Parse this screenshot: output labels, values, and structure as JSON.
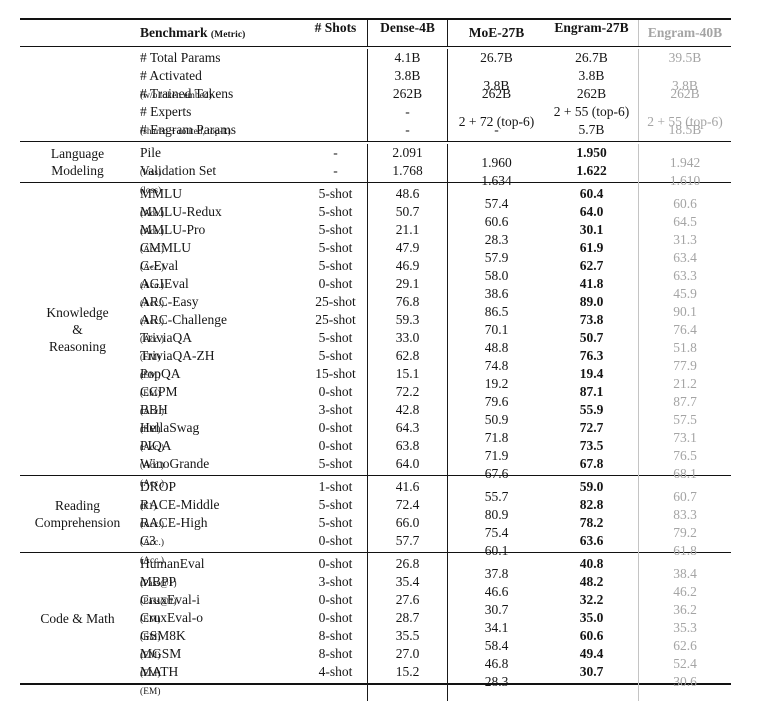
{
  "table": {
    "header": {
      "benchmark_label": "Benchmark",
      "benchmark_metric": "(Metric)",
      "shots_label": "# Shots",
      "models": [
        "Dense-4B",
        "MoE-27B",
        "Engram-27B",
        "Engram-40B"
      ]
    },
    "colors": {
      "text": "#151515",
      "muted_text": "#a4a4a4",
      "rule": "#121212",
      "muted_rule": "#c4c4c4"
    },
    "spec_section": {
      "rows": [
        {
          "name": "# Total Params",
          "sublabel": "",
          "shots": "",
          "values": [
            "4.1B",
            "26.7B",
            "26.7B",
            "39.5B"
          ]
        },
        {
          "name": "# Activated",
          "sublabel": "(w/o token embed)",
          "shots": "",
          "values": [
            "3.8B",
            "3.8B",
            "3.8B",
            "3.8B"
          ]
        },
        {
          "name": "# Trained Tokens",
          "sublabel": "",
          "shots": "",
          "values": [
            "262B",
            "262B",
            "262B",
            "262B"
          ]
        },
        {
          "name": "# Experts",
          "sublabel": "(shared + routed, top-k)",
          "shots": "",
          "values": [
            "-",
            "2 + 72 (top-6)",
            "2 + 55 (top-6)",
            "2 + 55 (top-6)"
          ]
        },
        {
          "name": "# Engram Params",
          "sublabel": "",
          "shots": "",
          "values": [
            "-",
            "-",
            "5.7B",
            "18.5B"
          ]
        }
      ]
    },
    "sections": [
      {
        "group": [
          "Language",
          "Modeling"
        ],
        "rows": [
          {
            "name": "Pile",
            "metric": "(loss)",
            "shots": "-",
            "values": [
              "2.091",
              "1.960",
              "1.950",
              "1.942"
            ]
          },
          {
            "name": "Validation Set",
            "metric": "(loss)",
            "shots": "-",
            "values": [
              "1.768",
              "1.634",
              "1.622",
              "1.610"
            ]
          }
        ]
      },
      {
        "group": [
          "Knowledge",
          "&",
          "Reasoning"
        ],
        "rows": [
          {
            "name": "MMLU",
            "metric": "(Acc.)",
            "shots": "5-shot",
            "values": [
              "48.6",
              "57.4",
              "60.4",
              "60.6"
            ]
          },
          {
            "name": "MMLU-Redux",
            "metric": "(Acc.)",
            "shots": "5-shot",
            "values": [
              "50.7",
              "60.6",
              "64.0",
              "64.5"
            ]
          },
          {
            "name": "MMLU-Pro",
            "metric": "(Acc.)",
            "shots": "5-shot",
            "values": [
              "21.1",
              "28.3",
              "30.1",
              "31.3"
            ]
          },
          {
            "name": "CMMLU",
            "metric": "(Acc.)",
            "shots": "5-shot",
            "values": [
              "47.9",
              "57.9",
              "61.9",
              "63.4"
            ]
          },
          {
            "name": "C-Eval",
            "metric": "(Acc.)",
            "shots": "5-shot",
            "values": [
              "46.9",
              "58.0",
              "62.7",
              "63.3"
            ]
          },
          {
            "name": "AGIEval",
            "metric": "(Acc.)",
            "shots": "0-shot",
            "values": [
              "29.1",
              "38.6",
              "41.8",
              "45.9"
            ]
          },
          {
            "name": "ARC-Easy",
            "metric": "(Acc.)",
            "shots": "25-shot",
            "values": [
              "76.8",
              "86.5",
              "89.0",
              "90.1"
            ]
          },
          {
            "name": "ARC-Challenge",
            "metric": "(Acc.)",
            "shots": "25-shot",
            "values": [
              "59.3",
              "70.1",
              "73.8",
              "76.4"
            ]
          },
          {
            "name": "TriviaQA",
            "metric": "(EM)",
            "shots": "5-shot",
            "values": [
              "33.0",
              "48.8",
              "50.7",
              "51.8"
            ]
          },
          {
            "name": "TriviaQA-ZH",
            "metric": "(EM)",
            "shots": "5-shot",
            "values": [
              "62.8",
              "74.8",
              "76.3",
              "77.9"
            ]
          },
          {
            "name": "PopQA",
            "metric": "(EM)",
            "shots": "15-shot",
            "values": [
              "15.1",
              "19.2",
              "19.4",
              "21.2"
            ]
          },
          {
            "name": "CCPM",
            "metric": "(Acc.)",
            "shots": "0-shot",
            "values": [
              "72.2",
              "79.6",
              "87.1",
              "87.7"
            ]
          },
          {
            "name": "BBH",
            "metric": "(EM)",
            "shots": "3-shot",
            "values": [
              "42.8",
              "50.9",
              "55.9",
              "57.5"
            ]
          },
          {
            "name": "HellaSwag",
            "metric": "(Acc.)",
            "shots": "0-shot",
            "values": [
              "64.3",
              "71.8",
              "72.7",
              "73.1"
            ]
          },
          {
            "name": "PIQA",
            "metric": "(Acc.)",
            "shots": "0-shot",
            "values": [
              "63.8",
              "71.9",
              "73.5",
              "76.5"
            ]
          },
          {
            "name": "WinoGrande",
            "metric": "(Acc.)",
            "shots": "5-shot",
            "values": [
              "64.0",
              "67.6",
              "67.8",
              "68.1"
            ]
          }
        ]
      },
      {
        "group": [
          "Reading",
          "Comprehension"
        ],
        "rows": [
          {
            "name": "DROP",
            "metric": "(F1)",
            "shots": "1-shot",
            "values": [
              "41.6",
              "55.7",
              "59.0",
              "60.7"
            ]
          },
          {
            "name": "RACE-Middle",
            "metric": "(Acc.)",
            "shots": "5-shot",
            "values": [
              "72.4",
              "80.9",
              "82.8",
              "83.3"
            ]
          },
          {
            "name": "RACE-High",
            "metric": "(Acc.)",
            "shots": "5-shot",
            "values": [
              "66.0",
              "75.4",
              "78.2",
              "79.2"
            ]
          },
          {
            "name": "C3",
            "metric": "(Acc.)",
            "shots": "0-shot",
            "values": [
              "57.7",
              "60.1",
              "63.6",
              "61.8"
            ]
          }
        ]
      },
      {
        "group": [
          "Code & Math"
        ],
        "rows": [
          {
            "name": "HumanEval",
            "metric": "(Pass@1)",
            "shots": "0-shot",
            "values": [
              "26.8",
              "37.8",
              "40.8",
              "38.4"
            ]
          },
          {
            "name": "MBPP",
            "metric": "(Pass@1)",
            "shots": "3-shot",
            "values": [
              "35.4",
              "46.6",
              "48.2",
              "46.2"
            ]
          },
          {
            "name": "CruxEval-i",
            "metric": "(EM)",
            "shots": "0-shot",
            "values": [
              "27.6",
              "30.7",
              "32.2",
              "36.2"
            ]
          },
          {
            "name": "CruxEval-o",
            "metric": "(EM)",
            "shots": "0-shot",
            "values": [
              "28.7",
              "34.1",
              "35.0",
              "35.3"
            ]
          },
          {
            "name": "GSM8K",
            "metric": "(EM)",
            "shots": "8-shot",
            "values": [
              "35.5",
              "58.4",
              "60.6",
              "62.6"
            ]
          },
          {
            "name": "MGSM",
            "metric": "(EM)",
            "shots": "8-shot",
            "values": [
              "27.0",
              "46.8",
              "49.4",
              "52.4"
            ]
          },
          {
            "name": "MATH",
            "metric": "(EM)",
            "shots": "4-shot",
            "values": [
              "15.2",
              "28.3",
              "30.7",
              "30.6"
            ]
          }
        ]
      }
    ]
  }
}
